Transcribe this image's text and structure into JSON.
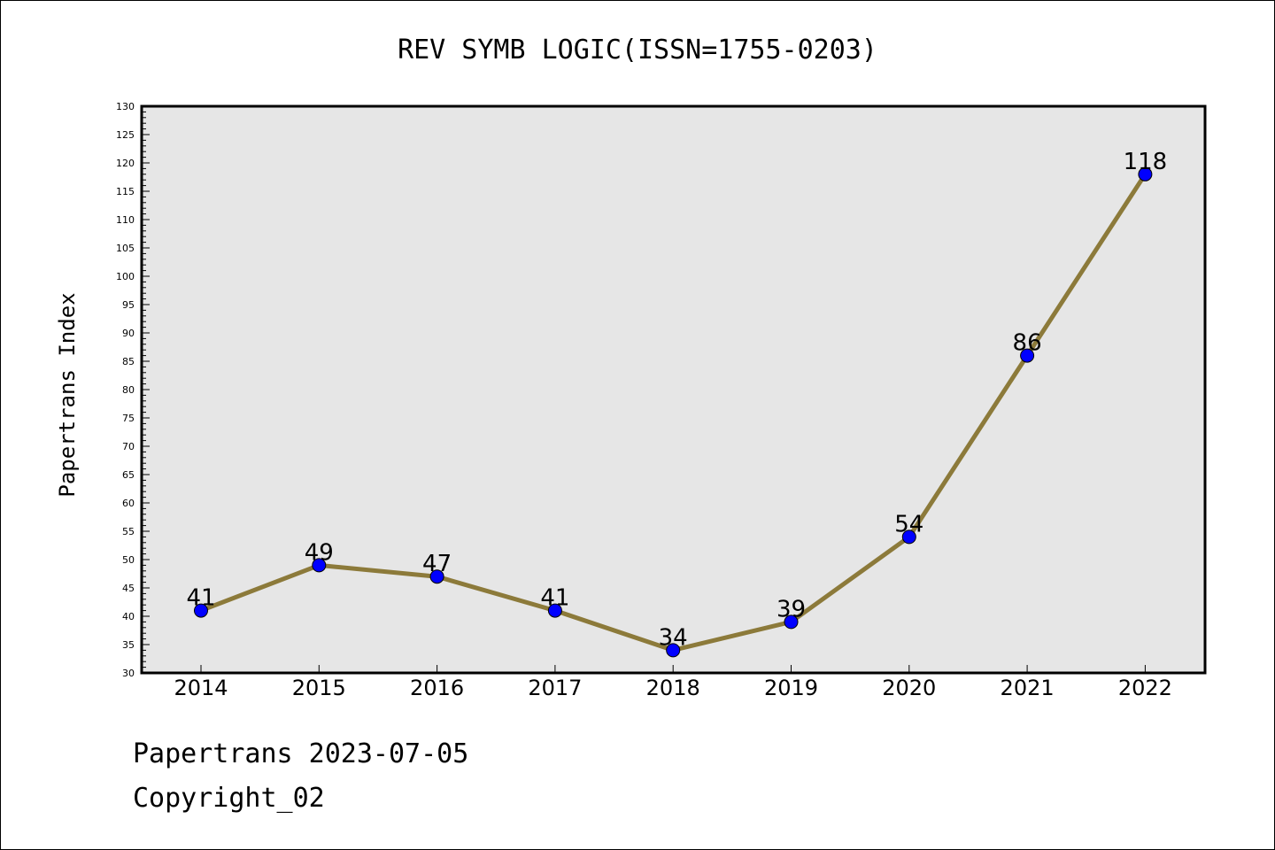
{
  "chart_data": {
    "type": "line",
    "title": "REV SYMB LOGIC(ISSN=1755-0203)",
    "xlabel": "",
    "ylabel": "Papertrans Index",
    "categories": [
      "2014",
      "2015",
      "2016",
      "2017",
      "2018",
      "2019",
      "2020",
      "2021",
      "2022"
    ],
    "series": [
      {
        "values": [
          41,
          49,
          47,
          41,
          34,
          39,
          54,
          86,
          118
        ]
      }
    ],
    "ylim": [
      30,
      130
    ],
    "yticks": [
      30,
      35,
      40,
      45,
      50,
      55,
      60,
      65,
      70,
      75,
      80,
      85,
      90,
      95,
      100,
      105,
      110,
      115,
      120,
      125,
      130
    ],
    "grid": false,
    "colors": {
      "line": "#8c7a3a",
      "marker": "#0000ff",
      "plot_background": "#e6e6e6"
    }
  },
  "footer": {
    "line1": "Papertrans 2023-07-05",
    "line2": "Copyright_02"
  }
}
